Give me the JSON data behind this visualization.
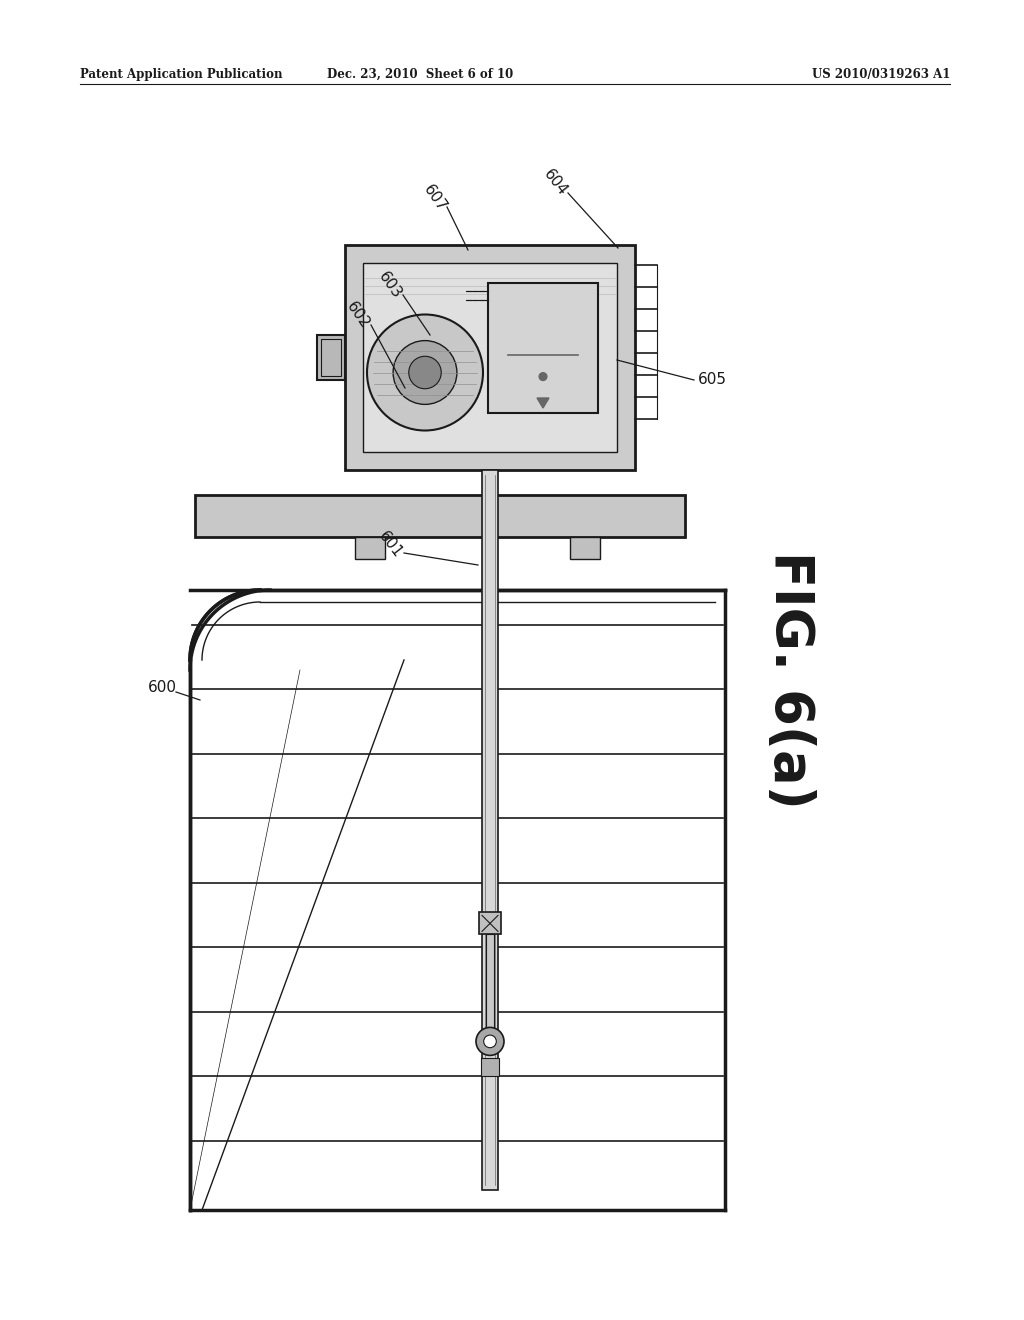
{
  "bg_color": "#ffffff",
  "header_left": "Patent Application Publication",
  "header_center": "Dec. 23, 2010  Sheet 6 of 10",
  "header_right": "US 2010/0319263 A1",
  "fig_label": "FIG. 6(a)"
}
